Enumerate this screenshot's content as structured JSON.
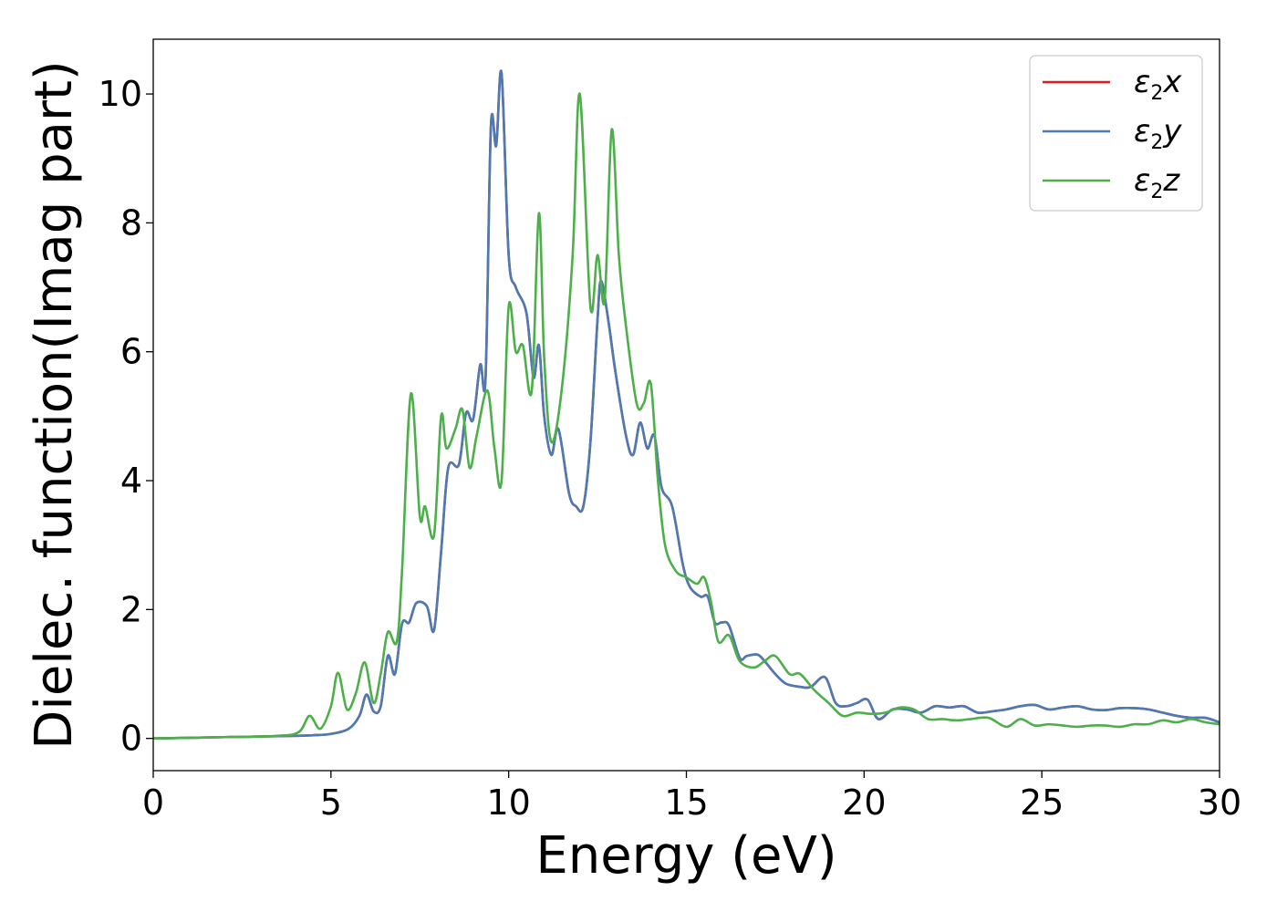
{
  "chart_data": {
    "type": "line",
    "title": "",
    "xlabel": "Energy (eV)",
    "ylabel": "Dielec. function(Imag part)",
    "xlim": [
      0,
      30
    ],
    "ylim": [
      -0.5,
      10.85
    ],
    "xticks": [
      "0",
      "5",
      "10",
      "15",
      "20",
      "25",
      "30"
    ],
    "yticks": [
      "0",
      "2",
      "4",
      "6",
      "8",
      "10"
    ],
    "grid": false,
    "legend_position": "top-right",
    "series": [
      {
        "name": "x",
        "legend_base": "ε",
        "legend_sub": "2",
        "legend_tail": "x",
        "color": "#e41a1c",
        "x": [
          0,
          2,
          4,
          4.5,
          5,
          5.5,
          5.8,
          6.0,
          6.2,
          6.4,
          6.6,
          6.8,
          7.0,
          7.2,
          7.4,
          7.7,
          7.9,
          8.1,
          8.3,
          8.6,
          8.8,
          9.0,
          9.2,
          9.35,
          9.5,
          9.65,
          9.8,
          10.0,
          10.2,
          10.5,
          10.7,
          10.85,
          11.0,
          11.2,
          11.4,
          11.7,
          11.9,
          12.1,
          12.3,
          12.5,
          12.6,
          12.8,
          13.0,
          13.3,
          13.5,
          13.7,
          13.9,
          14.1,
          14.3,
          14.6,
          14.9,
          15.1,
          15.4,
          15.6,
          15.8,
          16.0,
          16.2,
          16.5,
          16.7,
          17.0,
          17.2,
          17.5,
          17.8,
          18.2,
          18.5,
          18.9,
          19.2,
          19.5,
          19.8,
          20.1,
          20.4,
          20.8,
          21.2,
          21.6,
          22.0,
          22.4,
          22.8,
          23.2,
          23.6,
          24.0,
          24.4,
          24.8,
          25.2,
          25.6,
          26.0,
          26.4,
          26.8,
          27.2,
          27.6,
          28.0,
          28.4,
          28.8,
          29.2,
          29.6,
          30.0
        ],
        "y": [
          0.0,
          0.02,
          0.04,
          0.05,
          0.07,
          0.15,
          0.35,
          0.68,
          0.42,
          0.5,
          1.28,
          1.0,
          1.78,
          1.8,
          2.1,
          2.05,
          1.68,
          2.9,
          4.2,
          4.25,
          5.05,
          4.95,
          5.8,
          5.6,
          9.5,
          9.2,
          10.32,
          7.5,
          7.0,
          6.6,
          5.6,
          6.1,
          5.0,
          4.4,
          4.8,
          3.8,
          3.6,
          3.6,
          4.6,
          6.5,
          7.1,
          6.5,
          5.7,
          4.7,
          4.4,
          4.9,
          4.5,
          4.7,
          3.9,
          3.6,
          2.7,
          2.35,
          2.2,
          2.2,
          1.8,
          1.8,
          1.75,
          1.25,
          1.28,
          1.3,
          1.2,
          1.0,
          0.85,
          0.8,
          0.8,
          0.95,
          0.55,
          0.5,
          0.55,
          0.6,
          0.3,
          0.45,
          0.45,
          0.4,
          0.5,
          0.48,
          0.5,
          0.4,
          0.42,
          0.45,
          0.5,
          0.52,
          0.45,
          0.48,
          0.5,
          0.45,
          0.44,
          0.47,
          0.47,
          0.45,
          0.4,
          0.35,
          0.32,
          0.32,
          0.25
        ]
      },
      {
        "name": "y",
        "legend_base": "ε",
        "legend_sub": "2",
        "legend_tail": "y",
        "color": "#4a7bb5",
        "x": [
          0,
          2,
          4,
          4.5,
          5,
          5.5,
          5.8,
          6.0,
          6.2,
          6.4,
          6.6,
          6.8,
          7.0,
          7.2,
          7.4,
          7.7,
          7.9,
          8.1,
          8.3,
          8.6,
          8.8,
          9.0,
          9.2,
          9.35,
          9.5,
          9.65,
          9.8,
          10.0,
          10.2,
          10.5,
          10.7,
          10.85,
          11.0,
          11.2,
          11.4,
          11.7,
          11.9,
          12.1,
          12.3,
          12.5,
          12.6,
          12.8,
          13.0,
          13.3,
          13.5,
          13.7,
          13.9,
          14.1,
          14.3,
          14.6,
          14.9,
          15.1,
          15.4,
          15.6,
          15.8,
          16.0,
          16.2,
          16.5,
          16.7,
          17.0,
          17.2,
          17.5,
          17.8,
          18.2,
          18.5,
          18.9,
          19.2,
          19.5,
          19.8,
          20.1,
          20.4,
          20.8,
          21.2,
          21.6,
          22.0,
          22.4,
          22.8,
          23.2,
          23.6,
          24.0,
          24.4,
          24.8,
          25.2,
          25.6,
          26.0,
          26.4,
          26.8,
          27.2,
          27.6,
          28.0,
          28.4,
          28.8,
          29.2,
          29.6,
          30.0
        ],
        "y": [
          0.0,
          0.02,
          0.04,
          0.05,
          0.07,
          0.15,
          0.35,
          0.68,
          0.42,
          0.5,
          1.28,
          1.0,
          1.78,
          1.8,
          2.1,
          2.05,
          1.68,
          2.9,
          4.2,
          4.25,
          5.05,
          4.95,
          5.8,
          5.6,
          9.5,
          9.2,
          10.32,
          7.5,
          7.0,
          6.6,
          5.6,
          6.1,
          5.0,
          4.4,
          4.8,
          3.8,
          3.6,
          3.6,
          4.6,
          6.5,
          7.1,
          6.5,
          5.7,
          4.7,
          4.4,
          4.9,
          4.5,
          4.7,
          3.9,
          3.6,
          2.7,
          2.35,
          2.2,
          2.2,
          1.8,
          1.8,
          1.75,
          1.25,
          1.28,
          1.3,
          1.2,
          1.0,
          0.85,
          0.8,
          0.8,
          0.95,
          0.55,
          0.5,
          0.55,
          0.6,
          0.3,
          0.45,
          0.45,
          0.4,
          0.5,
          0.48,
          0.5,
          0.4,
          0.42,
          0.45,
          0.5,
          0.52,
          0.45,
          0.48,
          0.5,
          0.45,
          0.44,
          0.47,
          0.47,
          0.45,
          0.4,
          0.35,
          0.32,
          0.32,
          0.25
        ]
      },
      {
        "name": "z",
        "legend_base": "ε",
        "legend_sub": "2",
        "legend_tail": "z",
        "color": "#4daf4a",
        "x": [
          0,
          2,
          3.5,
          4.1,
          4.4,
          4.7,
          5.0,
          5.2,
          5.45,
          5.7,
          5.95,
          6.2,
          6.4,
          6.6,
          6.85,
          7.0,
          7.25,
          7.5,
          7.65,
          7.9,
          8.1,
          8.25,
          8.5,
          8.7,
          8.9,
          9.1,
          9.4,
          9.6,
          9.8,
          10.0,
          10.2,
          10.4,
          10.65,
          10.85,
          11.0,
          11.2,
          11.5,
          11.8,
          12.0,
          12.3,
          12.5,
          12.7,
          12.9,
          13.1,
          13.3,
          13.6,
          13.8,
          14.0,
          14.2,
          14.4,
          14.7,
          15.0,
          15.3,
          15.5,
          15.7,
          15.9,
          16.2,
          16.5,
          16.9,
          17.2,
          17.5,
          17.9,
          18.2,
          18.6,
          19.0,
          19.4,
          19.8,
          20.2,
          20.6,
          21.0,
          21.4,
          21.8,
          22.2,
          22.6,
          23.0,
          23.5,
          24.0,
          24.4,
          24.8,
          25.2,
          25.6,
          26.0,
          26.4,
          26.8,
          27.2,
          27.6,
          28.0,
          28.4,
          28.8,
          29.2,
          29.6,
          30.0
        ],
        "y": [
          0.0,
          0.02,
          0.04,
          0.1,
          0.35,
          0.15,
          0.5,
          1.02,
          0.45,
          0.7,
          1.18,
          0.55,
          1.0,
          1.65,
          1.5,
          2.6,
          5.35,
          3.45,
          3.6,
          3.15,
          5.0,
          4.5,
          4.8,
          5.1,
          4.2,
          4.7,
          5.4,
          4.5,
          4.0,
          6.7,
          6.0,
          6.1,
          5.4,
          8.15,
          5.9,
          4.6,
          5.45,
          7.5,
          10.0,
          6.7,
          7.5,
          6.8,
          9.45,
          7.5,
          6.4,
          5.2,
          5.2,
          5.5,
          4.0,
          3.0,
          2.6,
          2.5,
          2.4,
          2.5,
          2.1,
          1.5,
          1.6,
          1.2,
          1.1,
          1.2,
          1.28,
          1.0,
          1.0,
          0.75,
          0.55,
          0.35,
          0.4,
          0.38,
          0.4,
          0.48,
          0.45,
          0.3,
          0.3,
          0.28,
          0.3,
          0.32,
          0.18,
          0.3,
          0.2,
          0.22,
          0.2,
          0.18,
          0.2,
          0.2,
          0.18,
          0.22,
          0.22,
          0.28,
          0.25,
          0.3,
          0.25,
          0.22
        ]
      }
    ]
  }
}
